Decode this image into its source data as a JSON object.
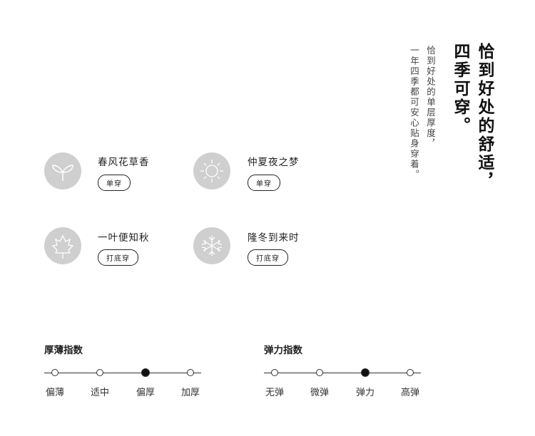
{
  "heading": {
    "line1": "恰到好处的舒适，",
    "line2": "四季可穿。"
  },
  "subheading": {
    "line1": "恰到好处的单层厚度，",
    "line2": "一年四季都可安心贴身穿着。"
  },
  "seasons": [
    {
      "name": "春风花草香",
      "badge": "单穿",
      "icon": "sprout-icon"
    },
    {
      "name": "仲夏夜之梦",
      "badge": "单穿",
      "icon": "sun-icon"
    },
    {
      "name": "一叶便知秋",
      "badge": "打底穿",
      "icon": "maple-leaf-icon"
    },
    {
      "name": "隆冬到来时",
      "badge": "打底穿",
      "icon": "snowflake-icon"
    }
  ],
  "thickness": {
    "title": "厚薄指数",
    "levels": [
      "偏薄",
      "适中",
      "偏厚",
      "加厚"
    ],
    "selected": "偏厚"
  },
  "elasticity": {
    "title": "弹力指数",
    "levels": [
      "无弹",
      "微弹",
      "弹力",
      "高弹"
    ],
    "selected": "弹力"
  },
  "colors": {
    "icon_circle": "#cfcfcf",
    "text": "#222222"
  }
}
